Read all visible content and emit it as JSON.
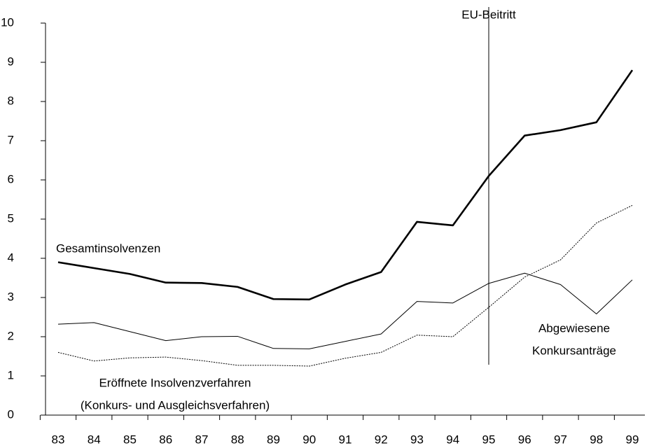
{
  "chart_data": {
    "type": "line",
    "categories": [
      "83",
      "84",
      "85",
      "86",
      "87",
      "88",
      "89",
      "90",
      "91",
      "92",
      "93",
      "94",
      "95",
      "96",
      "97",
      "98",
      "99"
    ],
    "ylim": [
      0,
      10
    ],
    "yticks": [
      0,
      1,
      2,
      3,
      4,
      5,
      6,
      7,
      8,
      9,
      10
    ],
    "vline": {
      "x": "95",
      "label": "EU-Beitritt"
    },
    "series": [
      {
        "name": [
          "Gesamtinsolvenzen"
        ],
        "color": "#000000",
        "style": "thick",
        "values": [
          3.9,
          3.75,
          3.6,
          3.38,
          3.37,
          3.27,
          2.96,
          2.95,
          3.33,
          3.65,
          4.93,
          4.84,
          6.1,
          7.13,
          7.27,
          7.47,
          8.8
        ]
      },
      {
        "name": [
          "Abgewiesene",
          "Konkursanträge"
        ],
        "color": "#000000",
        "style": "thin",
        "values": [
          2.32,
          2.36,
          2.13,
          1.9,
          2.0,
          2.01,
          1.7,
          1.69,
          1.88,
          2.07,
          2.9,
          2.86,
          3.36,
          3.62,
          3.33,
          2.58,
          3.45
        ]
      },
      {
        "name": [
          "Eröffnete Insolvenzverfahren",
          "(Konkurs- und Ausgleichsverfahren)"
        ],
        "color": "#000000",
        "style": "dotted",
        "values": [
          1.6,
          1.38,
          1.46,
          1.48,
          1.39,
          1.27,
          1.27,
          1.25,
          1.45,
          1.6,
          2.04,
          2.0,
          2.75,
          3.52,
          3.96,
          4.9,
          5.35
        ]
      }
    ]
  }
}
